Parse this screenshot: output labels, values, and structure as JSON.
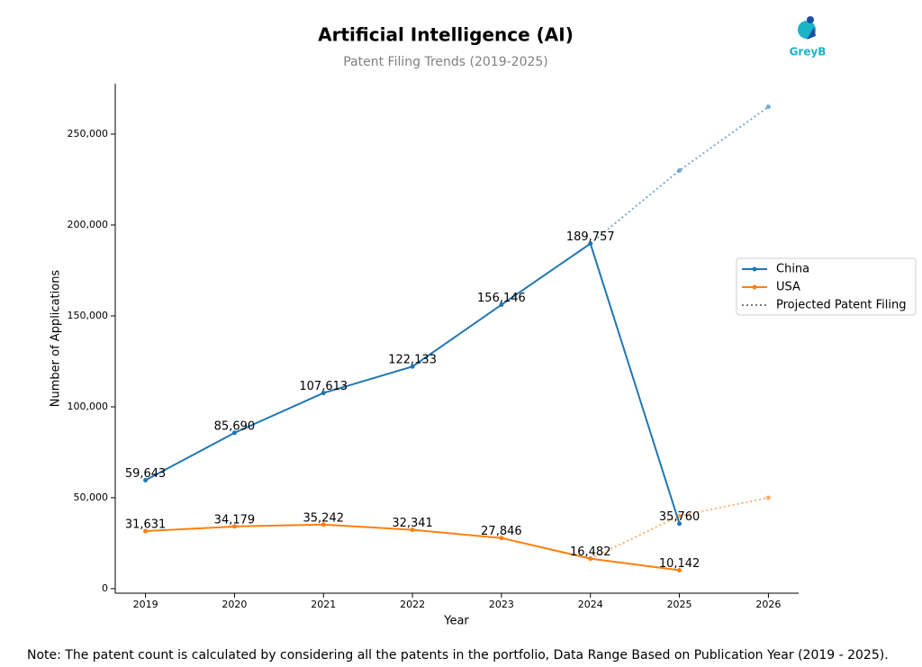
{
  "chart_data": {
    "type": "line",
    "title": "Artificial Intelligence (AI)",
    "subtitle": "Patent Filing Trends (2019-2025)",
    "brand": "GreyB",
    "x_label": "Year",
    "y_label": "Number of Applications",
    "note": "Note: The patent count is calculated by considering all the patents in the portfolio, Data Range Based on Publication Year (2019 - 2025).",
    "x": [
      2019,
      2020,
      2021,
      2022,
      2023,
      2024,
      2025,
      2026
    ],
    "xlim": [
      2018.66,
      2026.34
    ],
    "xticks": [
      2019,
      2020,
      2021,
      2022,
      2023,
      2024,
      2025,
      2026
    ],
    "ylim": [
      -2500,
      277700
    ],
    "yticks": [
      0,
      {
        "value": 50000,
        "label": "50,000"
      },
      {
        "value": 100000,
        "label": "100,000"
      },
      {
        "value": 150000,
        "label": "150,000"
      },
      {
        "value": 200000,
        "label": "200,000"
      },
      {
        "value": 250000,
        "label": "250,000"
      }
    ],
    "legend": "right",
    "series": [
      {
        "name": "China",
        "color": "#1f77b4",
        "values": [
          59643,
          85690,
          107613,
          122133,
          156146,
          189757,
          35760,
          null
        ],
        "value_labels": [
          "59,643",
          "85,690",
          "107,613",
          "122,133",
          "156,146",
          "189,757",
          "35,760",
          null
        ],
        "projected": [
          null,
          null,
          null,
          null,
          null,
          189757,
          230000,
          265000
        ]
      },
      {
        "name": "USA",
        "color": "#ff7f0e",
        "values": [
          31631,
          34179,
          35242,
          32341,
          27846,
          16482,
          10142,
          null
        ],
        "value_labels": [
          "31,631",
          "34,179",
          "35,242",
          "32,341",
          "27,846",
          "16,482",
          "10,142",
          null
        ],
        "projected": [
          null,
          null,
          null,
          null,
          null,
          16482,
          40000,
          50000
        ]
      }
    ],
    "projection": {
      "name": "Projected Patent Filing",
      "color": "#777777"
    }
  }
}
